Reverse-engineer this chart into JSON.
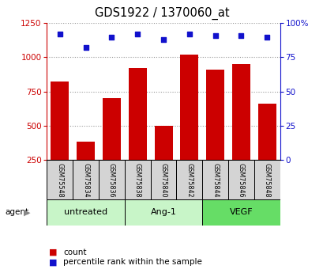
{
  "title": "GDS1922 / 1370060_at",
  "samples": [
    "GSM75548",
    "GSM75834",
    "GSM75836",
    "GSM75838",
    "GSM75840",
    "GSM75842",
    "GSM75844",
    "GSM75846",
    "GSM75848"
  ],
  "counts": [
    820,
    380,
    700,
    920,
    500,
    1020,
    910,
    950,
    660
  ],
  "percentile_ranks": [
    92,
    82,
    90,
    92,
    88,
    92,
    91,
    91,
    90
  ],
  "groups": [
    {
      "label": "untreated",
      "indices": [
        0,
        1,
        2
      ],
      "color": "#c8f5c8"
    },
    {
      "label": "Ang-1",
      "indices": [
        3,
        4,
        5
      ],
      "color": "#c8f5c8"
    },
    {
      "label": "VEGF",
      "indices": [
        6,
        7,
        8
      ],
      "color": "#66dd66"
    }
  ],
  "bar_color": "#cc0000",
  "dot_color": "#1111cc",
  "ylim_left": [
    250,
    1250
  ],
  "ylim_right": [
    0,
    100
  ],
  "yticks_left": [
    250,
    500,
    750,
    1000,
    1250
  ],
  "yticks_right": [
    0,
    25,
    50,
    75,
    100
  ],
  "grid_color": "#999999",
  "bg_plot": "#ffffff",
  "bg_sample": "#d4d4d4",
  "agent_label": "agent",
  "legend_count_label": "count",
  "legend_pct_label": "percentile rank within the sample"
}
